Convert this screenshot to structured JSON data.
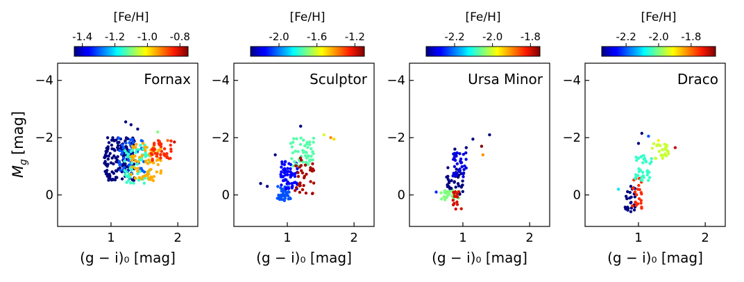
{
  "figure": {
    "ylabel_main": "M",
    "ylabel_sub": "g",
    "ylabel_unit": "[mag]"
  },
  "colormap": "jet",
  "chart_data": [
    {
      "type": "scatter",
      "panel_label": "Fornax",
      "xlabel": "(g − i)₀ [mag]",
      "xlim": [
        0.2,
        2.3
      ],
      "ylim": [
        1.1,
        -4.6
      ],
      "xticks": [
        "1",
        "2"
      ],
      "yticks": [
        "−4",
        "−2",
        "0"
      ],
      "colorbar": {
        "label": "[Fe/H]",
        "range": [
          -1.45,
          -0.75
        ],
        "ticks": [
          "-1.4",
          "-1.2",
          "-1.0",
          "-0.8"
        ]
      },
      "clusters": [
        {
          "x_range": [
            0.9,
            1.35
          ],
          "y_range": [
            -2.0,
            -0.5
          ],
          "feh": -1.45,
          "count": 160
        },
        {
          "x_range": [
            1.1,
            1.5
          ],
          "y_range": [
            -2.0,
            -0.8
          ],
          "feh": -1.3,
          "count": 50
        },
        {
          "x_range": [
            1.2,
            1.6
          ],
          "y_range": [
            -1.8,
            -0.4
          ],
          "feh": -1.15,
          "count": 60
        },
        {
          "x_range": [
            1.3,
            1.75
          ],
          "y_range": [
            -1.8,
            -0.5
          ],
          "feh": -0.95,
          "count": 70
        },
        {
          "x_range": [
            1.6,
            1.9
          ],
          "y_range": [
            -1.9,
            -1.2
          ],
          "feh": -0.85,
          "count": 40
        }
      ],
      "outliers": [
        {
          "x": 1.22,
          "y": -2.55,
          "feh": -1.45
        },
        {
          "x": 1.3,
          "y": -2.45,
          "feh": -1.45
        },
        {
          "x": 1.4,
          "y": -2.3,
          "feh": -1.45
        },
        {
          "x": 1.7,
          "y": -2.2,
          "feh": -1.1
        },
        {
          "x": 1.85,
          "y": -1.9,
          "feh": -0.9
        },
        {
          "x": 1.95,
          "y": -1.85,
          "feh": -0.8
        }
      ]
    },
    {
      "type": "scatter",
      "panel_label": "Sculptor",
      "xlabel": "(g − i)₀ [mag]",
      "xlim": [
        0.2,
        2.3
      ],
      "ylim": [
        1.1,
        -4.6
      ],
      "xticks": [
        "1",
        "2"
      ],
      "yticks": [
        "−4",
        "−2",
        "0"
      ],
      "colorbar": {
        "label": "[Fe/H]",
        "range": [
          -2.3,
          -1.1
        ],
        "ticks": [
          "-2.0",
          "-1.6",
          "-1.2"
        ]
      },
      "clusters": [
        {
          "x_range": [
            0.85,
            1.05
          ],
          "y_range": [
            -0.3,
            0.2
          ],
          "feh": -2.05,
          "count": 45
        },
        {
          "x_range": [
            0.9,
            1.15
          ],
          "y_range": [
            -1.2,
            -0.2
          ],
          "feh": -2.15,
          "count": 60
        },
        {
          "x_range": [
            1.05,
            1.4
          ],
          "y_range": [
            -2.0,
            -1.0
          ],
          "feh": -1.75,
          "count": 50
        },
        {
          "x_range": [
            1.1,
            1.4
          ],
          "y_range": [
            -1.3,
            0.0
          ],
          "feh": -1.15,
          "count": 35
        }
      ],
      "outliers": [
        {
          "x": 0.6,
          "y": -0.4,
          "feh": -2.3
        },
        {
          "x": 0.7,
          "y": -0.3,
          "feh": -2.3
        },
        {
          "x": 0.82,
          "y": -1.4,
          "feh": -2.3
        },
        {
          "x": 1.2,
          "y": -2.4,
          "feh": -2.3
        },
        {
          "x": 1.55,
          "y": -2.1,
          "feh": -1.6
        },
        {
          "x": 1.65,
          "y": -2.0,
          "feh": -1.4
        },
        {
          "x": 1.7,
          "y": -1.95,
          "feh": -1.5
        }
      ]
    },
    {
      "type": "scatter",
      "panel_label": "Ursa Minor",
      "xlabel": "(g − i)₀ [mag]",
      "xlim": [
        0.2,
        2.3
      ],
      "ylim": [
        1.1,
        -4.6
      ],
      "xticks": [
        "1",
        "2"
      ],
      "yticks": [
        "−4",
        "−2",
        "0"
      ],
      "colorbar": {
        "label": "[Fe/H]",
        "range": [
          -2.35,
          -1.75
        ],
        "ticks": [
          "-2.2",
          "-2.0",
          "-1.8"
        ]
      },
      "clusters": [
        {
          "x_range": [
            0.65,
            0.95
          ],
          "y_range": [
            -0.2,
            0.2
          ],
          "feh": -2.05,
          "count": 30
        },
        {
          "x_range": [
            0.75,
            1.0
          ],
          "y_range": [
            -1.0,
            0.0
          ],
          "feh": -2.35,
          "count": 35
        },
        {
          "x_range": [
            0.85,
            1.05
          ],
          "y_range": [
            -1.5,
            -0.6
          ],
          "feh": -2.3,
          "count": 35
        },
        {
          "x_range": [
            0.85,
            1.0
          ],
          "y_range": [
            -0.3,
            0.5
          ],
          "feh": -1.8,
          "count": 18
        }
      ],
      "outliers": [
        {
          "x": 0.88,
          "y": -1.6,
          "feh": -2.35
        },
        {
          "x": 1.05,
          "y": -1.65,
          "feh": -2.35
        },
        {
          "x": 1.15,
          "y": -1.95,
          "feh": -2.35
        },
        {
          "x": 1.4,
          "y": -2.1,
          "feh": -2.35
        },
        {
          "x": 1.28,
          "y": -1.7,
          "feh": -1.75
        },
        {
          "x": 1.3,
          "y": -1.4,
          "feh": -1.9
        },
        {
          "x": 0.6,
          "y": -0.1,
          "feh": -2.25
        }
      ]
    },
    {
      "type": "scatter",
      "panel_label": "Draco",
      "xlabel": "(g − i)₀ [mag]",
      "xlim": [
        0.2,
        2.3
      ],
      "ylim": [
        1.1,
        -4.6
      ],
      "xticks": [
        "1",
        "2"
      ],
      "yticks": [
        "−4",
        "−2",
        "0"
      ],
      "colorbar": {
        "label": "[Fe/H]",
        "range": [
          -2.35,
          -1.65
        ],
        "ticks": [
          "-2.2",
          "-2.0",
          "-1.8"
        ]
      },
      "clusters": [
        {
          "x_range": [
            0.8,
            0.95
          ],
          "y_range": [
            -0.3,
            0.6
          ],
          "feh": -2.35,
          "count": 25
        },
        {
          "x_range": [
            0.9,
            1.05
          ],
          "y_range": [
            -0.6,
            0.5
          ],
          "feh": -1.75,
          "count": 25
        },
        {
          "x_range": [
            0.95,
            1.2
          ],
          "y_range": [
            -1.4,
            -0.5
          ],
          "feh": -2.05,
          "count": 35
        },
        {
          "x_range": [
            1.2,
            1.45
          ],
          "y_range": [
            -1.8,
            -1.2
          ],
          "feh": -1.95,
          "count": 25
        }
      ],
      "outliers": [
        {
          "x": 1.0,
          "y": -1.8,
          "feh": -2.35
        },
        {
          "x": 1.05,
          "y": -2.15,
          "feh": -2.35
        },
        {
          "x": 1.15,
          "y": -2.05,
          "feh": -2.2
        },
        {
          "x": 1.3,
          "y": -1.9,
          "feh": -1.9
        },
        {
          "x": 1.55,
          "y": -1.65,
          "feh": -1.7
        },
        {
          "x": 0.7,
          "y": -0.2,
          "feh": -2.1
        }
      ]
    }
  ]
}
